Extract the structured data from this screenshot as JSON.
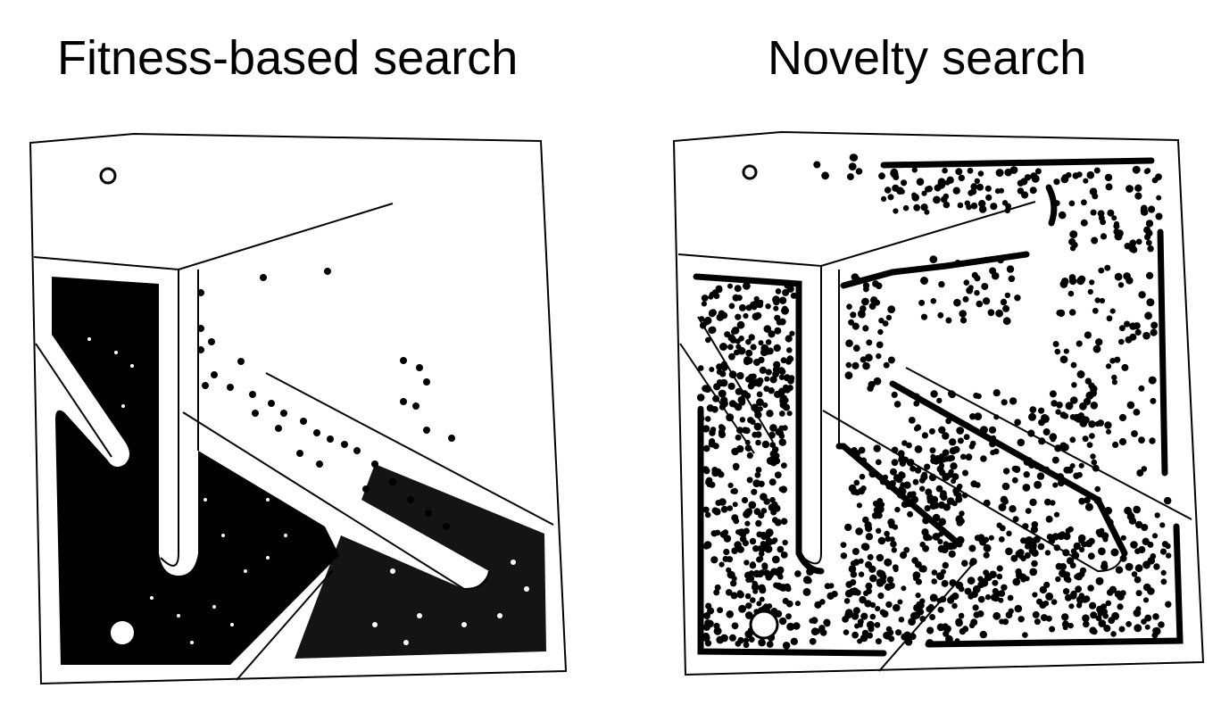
{
  "figure": {
    "left_panel": {
      "title": "Fitness-based search"
    },
    "right_panel": {
      "title": "Novelty search"
    }
  },
  "colors": {
    "background": "#ffffff",
    "ink": "#000000"
  }
}
